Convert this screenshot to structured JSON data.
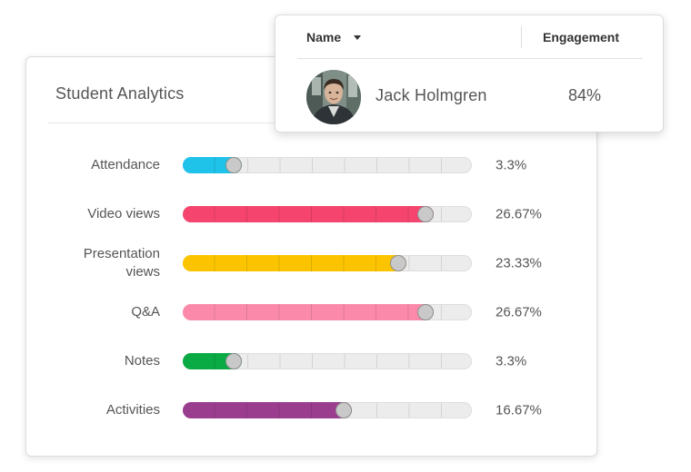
{
  "analytics": {
    "title": "Student Analytics",
    "metrics": [
      {
        "label": "Attendance",
        "value": "3.3%",
        "fraction": 0.033,
        "color": "#1fc2e8"
      },
      {
        "label": "Video views",
        "value": "26.67%",
        "fraction": 0.2667,
        "color": "#f5456e"
      },
      {
        "label": "Presentation views",
        "value": "23.33%",
        "fraction": 0.2333,
        "color": "#fcc400"
      },
      {
        "label": "Q&A",
        "value": "26.67%",
        "fraction": 0.2667,
        "color": "#fb8aaa"
      },
      {
        "label": "Notes",
        "value": "3.3%",
        "fraction": 0.033,
        "color": "#0aaa44"
      },
      {
        "label": "Activities",
        "value": "16.67%",
        "fraction": 0.1667,
        "color": "#9b3d8f"
      }
    ]
  },
  "table": {
    "columns": {
      "name": "Name",
      "engagement": "Engagement"
    },
    "sort_icon": "caret-down-icon",
    "rows": [
      {
        "name": "Jack Holmgren",
        "engagement": "84%",
        "avatar_icon": "user-photo-avatar"
      }
    ]
  }
}
